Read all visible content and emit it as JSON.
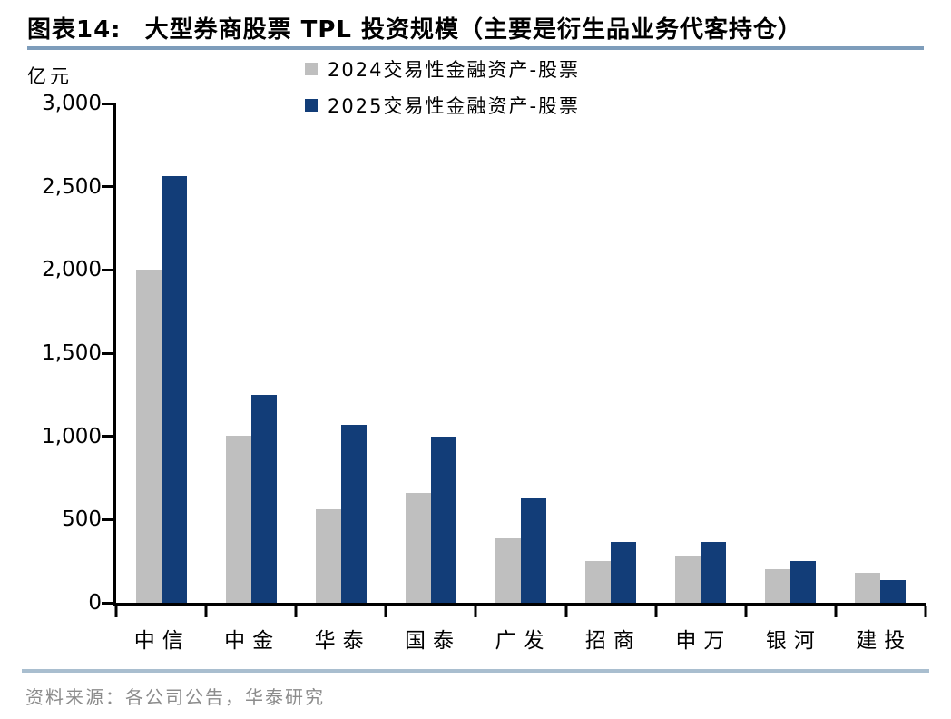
{
  "header": {
    "figure_label": "图表14:",
    "title": "大型券商股票 TPL 投资规模（主要是衍生品业务代客持仓）"
  },
  "colors": {
    "series_2024": "#BFBFBF",
    "series_2025": "#123D78",
    "axis": "#000000",
    "title_rule": "#7E9DBB",
    "footer_rule": "#A9BECF",
    "source_text": "#8C8C8C"
  },
  "chart_data": {
    "type": "bar",
    "title": "大型券商股票 TPL 投资规模（主要是衍生品业务代客持仓）",
    "unit_label": "亿元",
    "xlabel": "",
    "ylabel": "亿元",
    "categories": [
      "中信",
      "中金",
      "华泰",
      "国泰",
      "广发",
      "招商",
      "申万",
      "银河",
      "建投"
    ],
    "series": [
      {
        "name": "2024交易性金融资产-股票",
        "color": "#BFBFBF",
        "values": [
          2000,
          1005,
          560,
          660,
          385,
          250,
          280,
          200,
          180
        ]
      },
      {
        "name": "2025交易性金融资产-股票",
        "color": "#123D78",
        "values": [
          2565,
          1250,
          1070,
          1000,
          630,
          365,
          365,
          250,
          135
        ]
      }
    ],
    "ylim": [
      0,
      3000
    ],
    "ytick_step": 500,
    "ytick_labels": [
      "0",
      "500",
      "1,000",
      "1,500",
      "2,000",
      "2,500",
      "3,000"
    ],
    "legend_position": "top-center",
    "grid": false
  },
  "source": {
    "text": "资料来源：各公司公告，华泰研究"
  }
}
